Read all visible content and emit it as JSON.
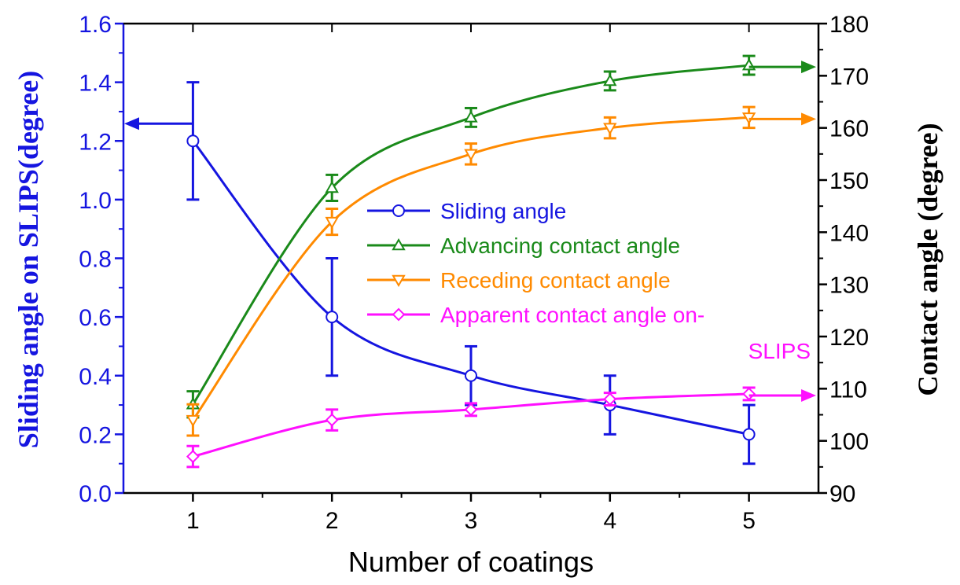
{
  "chart_data": {
    "type": "line",
    "xlabel": "Number of coatings",
    "ylabel_left": "Sliding angle on SLIPS(degree)",
    "ylabel_right": "Contact angle (degree)",
    "x": [
      1,
      2,
      3,
      4,
      5
    ],
    "x_ticks": [
      "1",
      "2",
      "3",
      "4",
      "5"
    ],
    "xlim": [
      0.5,
      5.5
    ],
    "ylim_left": [
      0,
      1.6
    ],
    "ylim_right": [
      90,
      180
    ],
    "y_ticks_left": [
      "0.0",
      "0.2",
      "0.4",
      "0.6",
      "0.8",
      "1.0",
      "1.2",
      "1.4",
      "1.6"
    ],
    "y_ticks_right": [
      "90",
      "100",
      "110",
      "120",
      "130",
      "140",
      "150",
      "160",
      "170",
      "180"
    ],
    "grid": false,
    "legend_position": "center",
    "series": [
      {
        "name": "Sliding angle",
        "axis": "left",
        "color": "#1515e0",
        "marker": "circle",
        "values": [
          1.2,
          0.6,
          0.4,
          0.3,
          0.2
        ],
        "errors": [
          0.2,
          0.2,
          0.1,
          0.1,
          0.1
        ]
      },
      {
        "name": "Advancing contact angle",
        "axis": "right",
        "color": "#1a8a1a",
        "marker": "triangle-up",
        "values": [
          107,
          148.5,
          162,
          169,
          172
        ],
        "errors": [
          2.5,
          2.5,
          1.8,
          1.8,
          1.8
        ]
      },
      {
        "name": "Receding contact angle",
        "axis": "right",
        "color": "#ff8a00",
        "marker": "triangle-down",
        "values": [
          104,
          142,
          155,
          160,
          162
        ],
        "errors": [
          3,
          2.5,
          2,
          2,
          2
        ]
      },
      {
        "name": "Apparent contact angle on-",
        "name_line2": "SLIPS",
        "axis": "right",
        "color": "#ff10ff",
        "marker": "diamond",
        "values": [
          97,
          104,
          106,
          108,
          109
        ],
        "errors": [
          2,
          2,
          1.2,
          1.2,
          1.2
        ]
      }
    ],
    "annotations": [
      {
        "type": "arrow",
        "series": 0,
        "direction": "left"
      },
      {
        "type": "arrow",
        "series": 1,
        "direction": "right"
      },
      {
        "type": "arrow",
        "series": 2,
        "direction": "right"
      },
      {
        "type": "arrow",
        "series": 3,
        "direction": "right"
      }
    ]
  }
}
